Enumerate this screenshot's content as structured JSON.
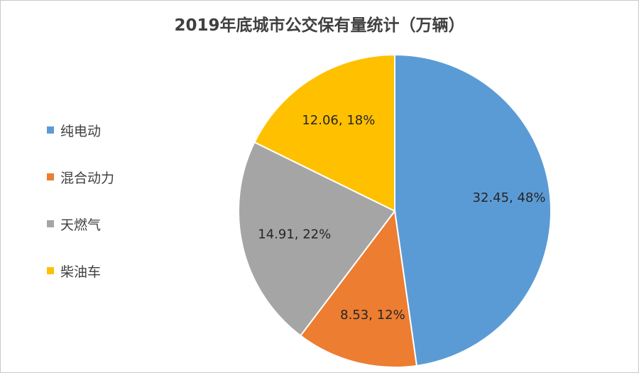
{
  "chart_data": {
    "type": "pie",
    "title": "2019年底城市公交保有量统计（万辆）",
    "legend_position": "left",
    "slices": [
      {
        "name": "纯电动",
        "value": 32.45,
        "percent": "48%",
        "color": "#5b9bd5"
      },
      {
        "name": "混合动力",
        "value": 8.53,
        "percent": "12%",
        "color": "#ed7d31"
      },
      {
        "name": "天燃气",
        "value": 14.91,
        "percent": "22%",
        "color": "#a5a5a5"
      },
      {
        "name": "柴油车",
        "value": 12.06,
        "percent": "18%",
        "color": "#ffc000"
      }
    ]
  }
}
